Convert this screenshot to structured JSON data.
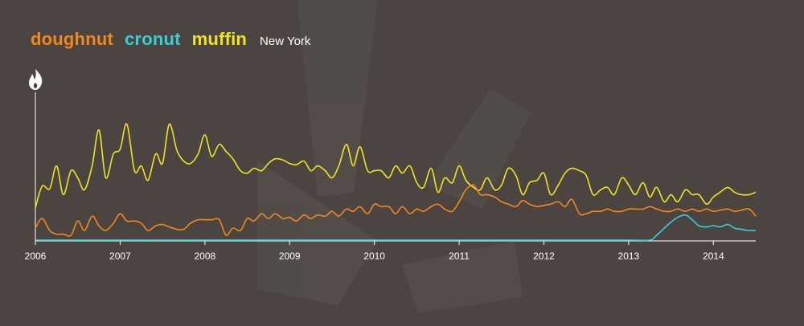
{
  "legend": {
    "terms": [
      {
        "label": "doughnut",
        "color": "#f0881e"
      },
      {
        "label": "cronut",
        "color": "#35d0d6"
      },
      {
        "label": "muffin",
        "color": "#eee424"
      }
    ],
    "location": "New York"
  },
  "y_icon": "flame-icon",
  "chart_data": {
    "type": "line",
    "title": "",
    "xlabel": "",
    "ylabel": "",
    "x_ticks": [
      "2006",
      "2007",
      "2008",
      "2009",
      "2010",
      "2011",
      "2012",
      "2013",
      "2014"
    ],
    "xlim": [
      2006.0,
      2014.5
    ],
    "ylim": [
      0,
      100
    ],
    "grid": false,
    "series": [
      {
        "name": "muffin",
        "color": "#eee424",
        "x": [
          2006.0,
          2006.08,
          2006.17,
          2006.25,
          2006.33,
          2006.42,
          2006.5,
          2006.58,
          2006.67,
          2006.75,
          2006.83,
          2006.92,
          2007.0,
          2007.08,
          2007.17,
          2007.25,
          2007.33,
          2007.42,
          2007.5,
          2007.58,
          2007.67,
          2007.75,
          2007.83,
          2007.92,
          2008.0,
          2008.08,
          2008.17,
          2008.25,
          2008.33,
          2008.42,
          2008.5,
          2008.58,
          2008.67,
          2008.75,
          2008.83,
          2008.92,
          2009.0,
          2009.08,
          2009.17,
          2009.25,
          2009.33,
          2009.42,
          2009.5,
          2009.58,
          2009.67,
          2009.75,
          2009.83,
          2009.92,
          2010.0,
          2010.08,
          2010.17,
          2010.25,
          2010.33,
          2010.42,
          2010.5,
          2010.58,
          2010.67,
          2010.75,
          2010.83,
          2010.92,
          2011.0,
          2011.08,
          2011.17,
          2011.25,
          2011.33,
          2011.42,
          2011.5,
          2011.58,
          2011.67,
          2011.75,
          2011.83,
          2011.92,
          2012.0,
          2012.08,
          2012.17,
          2012.25,
          2012.33,
          2012.42,
          2012.5,
          2012.58,
          2012.67,
          2012.75,
          2012.83,
          2012.92,
          2013.0,
          2013.08,
          2013.17,
          2013.25,
          2013.33,
          2013.42,
          2013.5,
          2013.58,
          2013.67,
          2013.75,
          2013.83,
          2013.92,
          2014.0,
          2014.08,
          2014.17,
          2014.25,
          2014.33,
          2014.42,
          2014.5
        ],
        "values": [
          27,
          45,
          43,
          62,
          38,
          58,
          52,
          42,
          62,
          92,
          52,
          72,
          76,
          97,
          58,
          62,
          50,
          72,
          64,
          97,
          75,
          66,
          64,
          72,
          88,
          70,
          80,
          74,
          68,
          58,
          56,
          60,
          58,
          64,
          68,
          67,
          64,
          63,
          66,
          58,
          62,
          58,
          52,
          62,
          80,
          62,
          78,
          58,
          58,
          58,
          52,
          62,
          56,
          62,
          48,
          44,
          60,
          40,
          52,
          48,
          62,
          50,
          44,
          42,
          52,
          42,
          46,
          60,
          54,
          38,
          48,
          50,
          56,
          38,
          46,
          56,
          60,
          58,
          54,
          38,
          42,
          44,
          38,
          52,
          46,
          38,
          48,
          36,
          44,
          32,
          38,
          32,
          42,
          38,
          38,
          30,
          36,
          40,
          44,
          40,
          38,
          38,
          40
        ]
      },
      {
        "name": "doughnut",
        "color": "#f0881e",
        "x": [
          2006.0,
          2006.08,
          2006.17,
          2006.25,
          2006.33,
          2006.42,
          2006.5,
          2006.58,
          2006.67,
          2006.75,
          2006.83,
          2006.92,
          2007.0,
          2007.08,
          2007.17,
          2007.25,
          2007.33,
          2007.42,
          2007.5,
          2007.58,
          2007.67,
          2007.75,
          2007.83,
          2007.92,
          2008.0,
          2008.08,
          2008.17,
          2008.25,
          2008.33,
          2008.42,
          2008.5,
          2008.58,
          2008.67,
          2008.75,
          2008.83,
          2008.92,
          2009.0,
          2009.08,
          2009.17,
          2009.25,
          2009.33,
          2009.42,
          2009.5,
          2009.58,
          2009.67,
          2009.75,
          2009.83,
          2009.92,
          2010.0,
          2010.08,
          2010.17,
          2010.25,
          2010.33,
          2010.42,
          2010.5,
          2010.58,
          2010.67,
          2010.75,
          2010.83,
          2010.92,
          2011.0,
          2011.08,
          2011.17,
          2011.25,
          2011.33,
          2011.42,
          2011.5,
          2011.58,
          2011.67,
          2011.75,
          2011.83,
          2011.92,
          2012.0,
          2012.08,
          2012.17,
          2012.25,
          2012.33,
          2012.42,
          2012.5,
          2012.58,
          2012.67,
          2012.75,
          2012.83,
          2012.92,
          2013.0,
          2013.08,
          2013.17,
          2013.25,
          2013.33,
          2013.42,
          2013.5,
          2013.58,
          2013.67,
          2013.75,
          2013.83,
          2013.92,
          2014.0,
          2014.08,
          2014.17,
          2014.25,
          2014.33,
          2014.42,
          2014.5
        ],
        "values": [
          10,
          18,
          8,
          5,
          5,
          4,
          16,
          8,
          20,
          12,
          8,
          14,
          22,
          16,
          16,
          14,
          8,
          12,
          13,
          11,
          9,
          9,
          14,
          17,
          17,
          17,
          17,
          4,
          10,
          8,
          18,
          16,
          22,
          18,
          22,
          18,
          19,
          16,
          21,
          18,
          21,
          20,
          24,
          20,
          26,
          24,
          28,
          22,
          30,
          28,
          28,
          22,
          28,
          22,
          26,
          24,
          28,
          30,
          26,
          24,
          32,
          42,
          46,
          38,
          38,
          36,
          32,
          30,
          28,
          33,
          30,
          28,
          29,
          30,
          32,
          28,
          34,
          22,
          22,
          24,
          24,
          26,
          24,
          24,
          26,
          26,
          26,
          28,
          26,
          24,
          24,
          26,
          24,
          26,
          24,
          26,
          24,
          25,
          26,
          24,
          25,
          26,
          20
        ]
      },
      {
        "name": "cronut",
        "color": "#35d0d6",
        "x": [
          2006.0,
          2007.0,
          2008.0,
          2009.0,
          2010.0,
          2011.0,
          2012.0,
          2013.0,
          2013.25,
          2013.33,
          2013.42,
          2013.5,
          2013.58,
          2013.67,
          2013.75,
          2013.83,
          2013.92,
          2014.0,
          2014.08,
          2014.17,
          2014.25,
          2014.33,
          2014.42,
          2014.5
        ],
        "values": [
          0,
          0,
          0,
          0,
          0,
          0,
          0,
          0,
          0,
          4,
          10,
          15,
          19,
          21,
          17,
          12,
          11,
          12,
          11,
          13,
          10,
          9,
          8,
          8
        ]
      }
    ]
  }
}
